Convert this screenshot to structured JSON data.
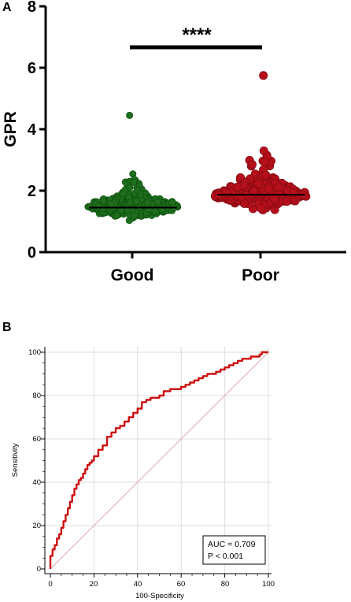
{
  "panel_labels": {
    "a": "A",
    "b": "B"
  },
  "colors": {
    "good_fill": "#1e6e1e",
    "good_edge": "#0b4a0b",
    "poor_fill": "#b40f1a",
    "poor_edge": "#7c0a10",
    "roc_line": "#cc1111",
    "diagonal": "#e3a5a5",
    "grid": "#dcdcdc"
  },
  "chart_data": [
    {
      "type": "scatter",
      "subtype": "beeswarm",
      "panel": "A",
      "ylabel": "GPR",
      "ylim": [
        0,
        8
      ],
      "yticks": [
        "0",
        "2",
        "4",
        "6",
        "8"
      ],
      "categories": [
        "Good",
        "Poor"
      ],
      "series": [
        {
          "name": "Good",
          "median": 1.45,
          "min": 0.75,
          "max": 4.45,
          "count": 430
        },
        {
          "name": "Poor",
          "median": 1.87,
          "min": 0.95,
          "max": 5.75,
          "count": 240
        }
      ],
      "significance": "****"
    },
    {
      "type": "line",
      "subtype": "roc",
      "panel": "B",
      "xlabel": "100-Specificity",
      "ylabel": "Sensitivity",
      "xlim": [
        0,
        100
      ],
      "ylim": [
        0,
        100
      ],
      "xticks": [
        "0",
        "20",
        "40",
        "60",
        "80",
        "100"
      ],
      "yticks": [
        "0",
        "20",
        "40",
        "60",
        "80",
        "100"
      ],
      "grid": true,
      "x": [
        0,
        0,
        1,
        2,
        3,
        4,
        5,
        6,
        7,
        8,
        9,
        10,
        11,
        12,
        13,
        14,
        15,
        16,
        17,
        18,
        19,
        20,
        22,
        24,
        26,
        28,
        30,
        32,
        34,
        36,
        38,
        40,
        42,
        44,
        46,
        48,
        50,
        52,
        55,
        58,
        60,
        62,
        64,
        66,
        68,
        70,
        72,
        74,
        76,
        78,
        80,
        82,
        84,
        86,
        88,
        90,
        92,
        94,
        96,
        97,
        98,
        100
      ],
      "y": [
        0,
        4,
        6,
        9,
        11,
        14,
        16,
        19,
        22,
        25,
        28,
        31,
        34,
        37,
        39,
        41,
        42,
        44,
        46,
        48,
        49,
        50,
        52,
        55,
        57,
        61,
        63,
        65,
        66,
        68,
        70,
        72,
        74,
        77,
        78,
        79,
        79,
        80,
        82,
        83,
        83,
        84,
        85,
        86,
        87,
        88,
        89,
        90,
        90,
        91,
        92,
        93,
        94,
        95,
        96,
        97,
        97,
        98,
        98,
        99,
        100,
        100
      ],
      "annotations": [
        "AUC = 0.709",
        "P < 0.001"
      ]
    }
  ]
}
